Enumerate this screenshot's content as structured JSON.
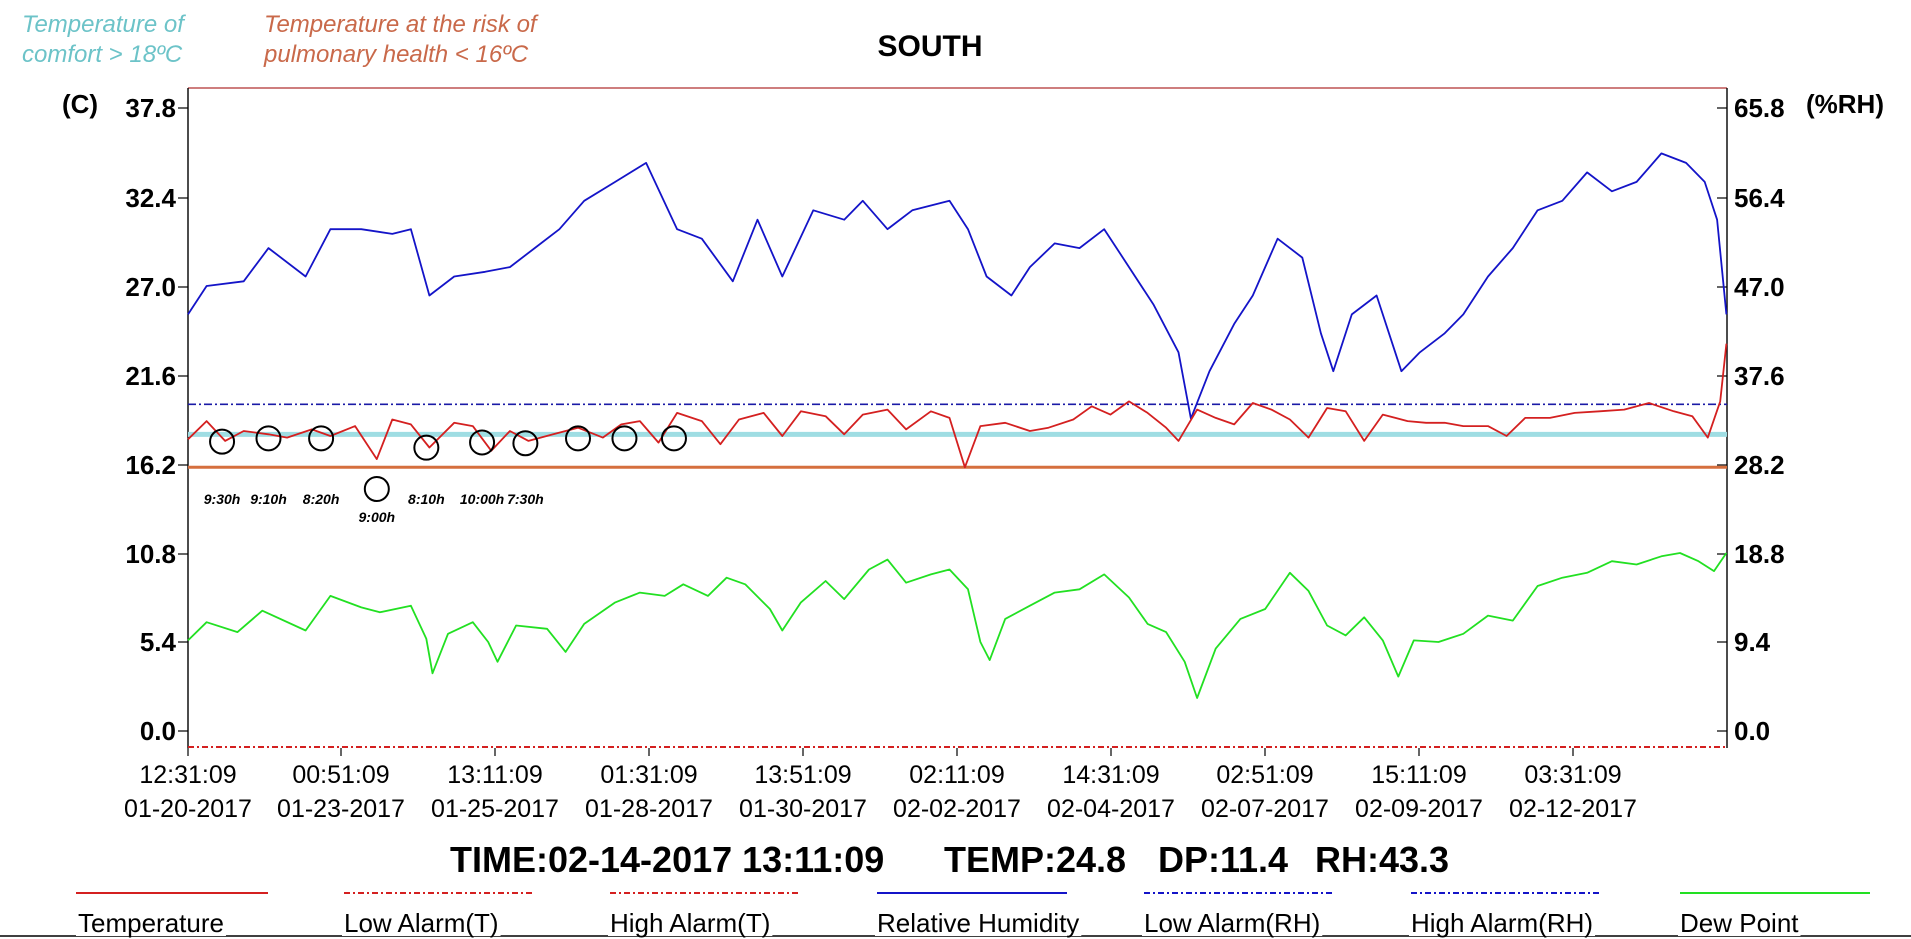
{
  "notes": {
    "comfort_line1": "Temperature of",
    "comfort_line2": "comfort > 18ºC",
    "comfort_color": "#6cc3c8",
    "risk_line1": "Temperature at the risk of",
    "risk_line2": "pulmonary health < 16ºC",
    "risk_color": "#c9694a"
  },
  "status": {
    "time": "TIME:02-14-2017 13:11:09",
    "temp": "TEMP:24.8",
    "dp": "DP:11.4",
    "rh": "RH:43.3"
  },
  "annotations": [
    {
      "label": "9:30h",
      "day": 0.55
    },
    {
      "label": "9:10h",
      "day": 1.3
    },
    {
      "label": "8:20h",
      "day": 2.15
    },
    {
      "label": "9:00h",
      "day": 3.05
    },
    {
      "label": "8:10h",
      "day": 3.85
    },
    {
      "label": "10:00h",
      "day": 4.75
    },
    {
      "label": "7:30h",
      "day": 5.45
    },
    {
      "label": "",
      "day": 6.3
    },
    {
      "label": "",
      "day": 7.05
    },
    {
      "label": "",
      "day": 7.85
    }
  ],
  "chart_data": {
    "type": "line",
    "title": "SOUTH",
    "left_axis_label": "(C)",
    "right_axis_label": "(%RH)",
    "left_ticks": [
      "37.8",
      "32.4",
      "27.0",
      "21.6",
      "16.2",
      "10.8",
      "5.4",
      "0.0"
    ],
    "right_ticks": [
      "65.8",
      "56.4",
      "47.0",
      "37.6",
      "28.2",
      "18.8",
      "9.4",
      "0.0"
    ],
    "left_ylim": [
      0.0,
      37.8
    ],
    "right_ylim": [
      0.0,
      65.8
    ],
    "x_tick_labels": [
      {
        "time": "12:31:09",
        "date": "01-20-2017"
      },
      {
        "time": "00:51:09",
        "date": "01-23-2017"
      },
      {
        "time": "13:11:09",
        "date": "01-25-2017"
      },
      {
        "time": "01:31:09",
        "date": "01-28-2017"
      },
      {
        "time": "13:51:09",
        "date": "01-30-2017"
      },
      {
        "time": "02:11:09",
        "date": "02-02-2017"
      },
      {
        "time": "14:31:09",
        "date": "02-04-2017"
      },
      {
        "time": "02:51:09",
        "date": "02-07-2017"
      },
      {
        "time": "15:11:09",
        "date": "02-09-2017"
      },
      {
        "time": "03:31:09",
        "date": "02-12-2017"
      }
    ],
    "x_range": [
      "01-20-2017 12:31:09",
      "02-14-2017 13:11:09"
    ],
    "reference_lines": [
      {
        "name": "Temperature of comfort",
        "value": 18,
        "axis": "left",
        "color": "#9fdde3"
      },
      {
        "name": "Temperature at the risk of pulmonary health",
        "value": 16,
        "axis": "left",
        "color": "#d56f3e"
      },
      {
        "name": "High Alarm(RH)",
        "value": 34.5,
        "axis": "right",
        "color": "#1a1aa6"
      },
      {
        "name": "Low Alarm(T)",
        "value": 0.0,
        "axis": "left",
        "color": "#cc2222"
      }
    ],
    "series": [
      {
        "name": "Relative Humidity",
        "axis": "right",
        "color": "#1414c8",
        "points": [
          [
            0,
            44
          ],
          [
            0.3,
            47
          ],
          [
            0.9,
            47.5
          ],
          [
            1.3,
            51
          ],
          [
            1.9,
            48
          ],
          [
            2.3,
            53
          ],
          [
            2.8,
            53
          ],
          [
            3.3,
            52.5
          ],
          [
            3.6,
            53
          ],
          [
            3.9,
            46
          ],
          [
            4.3,
            48
          ],
          [
            4.8,
            48.5
          ],
          [
            5.2,
            49
          ],
          [
            5.6,
            51
          ],
          [
            6.0,
            53
          ],
          [
            6.4,
            56
          ],
          [
            6.9,
            58
          ],
          [
            7.4,
            60
          ],
          [
            7.9,
            53
          ],
          [
            8.3,
            52
          ],
          [
            8.8,
            47.5
          ],
          [
            9.2,
            54
          ],
          [
            9.6,
            48
          ],
          [
            10.1,
            55
          ],
          [
            10.6,
            54
          ],
          [
            10.9,
            56
          ],
          [
            11.3,
            53
          ],
          [
            11.7,
            55
          ],
          [
            12.3,
            56
          ],
          [
            12.6,
            53
          ],
          [
            12.9,
            48
          ],
          [
            13.3,
            46
          ],
          [
            13.6,
            49
          ],
          [
            14.0,
            51.5
          ],
          [
            14.4,
            51
          ],
          [
            14.8,
            53
          ],
          [
            15.1,
            50
          ],
          [
            15.6,
            45
          ],
          [
            16.0,
            40
          ],
          [
            16.2,
            33
          ],
          [
            16.5,
            38
          ],
          [
            16.9,
            43
          ],
          [
            17.2,
            46
          ],
          [
            17.6,
            52
          ],
          [
            18.0,
            50
          ],
          [
            18.3,
            42
          ],
          [
            18.5,
            38
          ],
          [
            18.8,
            44
          ],
          [
            19.2,
            46
          ],
          [
            19.6,
            38
          ],
          [
            19.9,
            40
          ],
          [
            20.3,
            42
          ],
          [
            20.6,
            44
          ],
          [
            21.0,
            48
          ],
          [
            21.4,
            51
          ],
          [
            21.8,
            55
          ],
          [
            22.2,
            56
          ],
          [
            22.6,
            59
          ],
          [
            23.0,
            57
          ],
          [
            23.4,
            58
          ],
          [
            23.8,
            61
          ],
          [
            24.2,
            60
          ],
          [
            24.5,
            58
          ],
          [
            24.7,
            54
          ],
          [
            24.85,
            44
          ]
        ]
      },
      {
        "name": "Temperature",
        "axis": "left",
        "color": "#d42020",
        "points": [
          [
            0,
            17.7
          ],
          [
            0.3,
            18.8
          ],
          [
            0.6,
            17.6
          ],
          [
            0.9,
            18.2
          ],
          [
            1.3,
            18.0
          ],
          [
            1.6,
            17.8
          ],
          [
            2.0,
            18.3
          ],
          [
            2.3,
            17.9
          ],
          [
            2.7,
            18.5
          ],
          [
            3.05,
            16.5
          ],
          [
            3.3,
            18.9
          ],
          [
            3.6,
            18.6
          ],
          [
            3.9,
            17.2
          ],
          [
            4.3,
            18.7
          ],
          [
            4.6,
            18.5
          ],
          [
            4.9,
            17.0
          ],
          [
            5.2,
            18.2
          ],
          [
            5.5,
            17.6
          ],
          [
            5.9,
            18.0
          ],
          [
            6.3,
            18.4
          ],
          [
            6.7,
            17.8
          ],
          [
            7.0,
            18.6
          ],
          [
            7.3,
            18.8
          ],
          [
            7.6,
            17.5
          ],
          [
            7.9,
            19.3
          ],
          [
            8.3,
            18.8
          ],
          [
            8.6,
            17.4
          ],
          [
            8.9,
            18.9
          ],
          [
            9.3,
            19.3
          ],
          [
            9.6,
            17.9
          ],
          [
            9.9,
            19.4
          ],
          [
            10.3,
            19.1
          ],
          [
            10.6,
            18.0
          ],
          [
            10.9,
            19.2
          ],
          [
            11.3,
            19.5
          ],
          [
            11.6,
            18.3
          ],
          [
            12.0,
            19.4
          ],
          [
            12.3,
            19.0
          ],
          [
            12.55,
            16.0
          ],
          [
            12.8,
            18.5
          ],
          [
            13.2,
            18.7
          ],
          [
            13.6,
            18.2
          ],
          [
            13.9,
            18.4
          ],
          [
            14.3,
            18.9
          ],
          [
            14.6,
            19.7
          ],
          [
            14.9,
            19.2
          ],
          [
            15.2,
            20.0
          ],
          [
            15.5,
            19.3
          ],
          [
            15.8,
            18.4
          ],
          [
            16.0,
            17.6
          ],
          [
            16.3,
            19.5
          ],
          [
            16.6,
            19.0
          ],
          [
            16.9,
            18.6
          ],
          [
            17.2,
            19.9
          ],
          [
            17.5,
            19.5
          ],
          [
            17.8,
            18.9
          ],
          [
            18.1,
            17.8
          ],
          [
            18.4,
            19.6
          ],
          [
            18.7,
            19.4
          ],
          [
            19.0,
            17.6
          ],
          [
            19.3,
            19.2
          ],
          [
            19.7,
            18.8
          ],
          [
            20.0,
            18.7
          ],
          [
            20.3,
            18.7
          ],
          [
            20.6,
            18.5
          ],
          [
            21.0,
            18.5
          ],
          [
            21.3,
            17.9
          ],
          [
            21.6,
            19.0
          ],
          [
            22.0,
            19.0
          ],
          [
            22.4,
            19.3
          ],
          [
            22.8,
            19.4
          ],
          [
            23.2,
            19.5
          ],
          [
            23.6,
            19.9
          ],
          [
            24.0,
            19.4
          ],
          [
            24.3,
            19.1
          ],
          [
            24.55,
            17.8
          ],
          [
            24.75,
            20.0
          ],
          [
            24.85,
            23.5
          ]
        ]
      },
      {
        "name": "Dew Point",
        "axis": "left",
        "color": "#22e022",
        "points": [
          [
            0,
            5.5
          ],
          [
            0.3,
            6.6
          ],
          [
            0.8,
            6.0
          ],
          [
            1.2,
            7.3
          ],
          [
            1.9,
            6.1
          ],
          [
            2.3,
            8.2
          ],
          [
            2.8,
            7.5
          ],
          [
            3.1,
            7.2
          ],
          [
            3.6,
            7.6
          ],
          [
            3.85,
            5.6
          ],
          [
            3.95,
            3.5
          ],
          [
            4.2,
            5.9
          ],
          [
            4.6,
            6.6
          ],
          [
            4.85,
            5.4
          ],
          [
            5.0,
            4.2
          ],
          [
            5.3,
            6.4
          ],
          [
            5.8,
            6.2
          ],
          [
            6.1,
            4.8
          ],
          [
            6.4,
            6.5
          ],
          [
            6.9,
            7.8
          ],
          [
            7.3,
            8.4
          ],
          [
            7.7,
            8.2
          ],
          [
            8.0,
            8.9
          ],
          [
            8.4,
            8.2
          ],
          [
            8.7,
            9.3
          ],
          [
            9.0,
            8.9
          ],
          [
            9.4,
            7.4
          ],
          [
            9.6,
            6.1
          ],
          [
            9.9,
            7.8
          ],
          [
            10.3,
            9.1
          ],
          [
            10.6,
            8.0
          ],
          [
            11.0,
            9.8
          ],
          [
            11.3,
            10.4
          ],
          [
            11.6,
            9.0
          ],
          [
            12.0,
            9.5
          ],
          [
            12.3,
            9.8
          ],
          [
            12.6,
            8.6
          ],
          [
            12.8,
            5.4
          ],
          [
            12.95,
            4.3
          ],
          [
            13.2,
            6.8
          ],
          [
            13.6,
            7.6
          ],
          [
            14.0,
            8.4
          ],
          [
            14.4,
            8.6
          ],
          [
            14.8,
            9.5
          ],
          [
            15.2,
            8.1
          ],
          [
            15.5,
            6.5
          ],
          [
            15.8,
            6.0
          ],
          [
            16.1,
            4.2
          ],
          [
            16.3,
            2.0
          ],
          [
            16.6,
            5.0
          ],
          [
            17.0,
            6.8
          ],
          [
            17.4,
            7.4
          ],
          [
            17.8,
            9.6
          ],
          [
            18.1,
            8.5
          ],
          [
            18.4,
            6.4
          ],
          [
            18.7,
            5.8
          ],
          [
            19.0,
            6.9
          ],
          [
            19.3,
            5.5
          ],
          [
            19.55,
            3.3
          ],
          [
            19.8,
            5.5
          ],
          [
            20.2,
            5.4
          ],
          [
            20.6,
            5.9
          ],
          [
            21.0,
            7.0
          ],
          [
            21.4,
            6.7
          ],
          [
            21.8,
            8.8
          ],
          [
            22.2,
            9.3
          ],
          [
            22.6,
            9.6
          ],
          [
            23.0,
            10.3
          ],
          [
            23.4,
            10.1
          ],
          [
            23.8,
            10.6
          ],
          [
            24.1,
            10.8
          ],
          [
            24.4,
            10.3
          ],
          [
            24.65,
            9.7
          ],
          [
            24.85,
            10.8
          ]
        ]
      }
    ],
    "legend": [
      {
        "name": "Temperature",
        "color": "#d42020",
        "style": "solid"
      },
      {
        "name": "Low Alarm(T)",
        "color": "#d42020",
        "style": "dashdot"
      },
      {
        "name": "High Alarm(T)",
        "color": "#d42020",
        "style": "dashdot"
      },
      {
        "name": "Relative Humidity",
        "color": "#1414c8",
        "style": "solid"
      },
      {
        "name": "Low Alarm(RH)",
        "color": "#1414c8",
        "style": "dashdot"
      },
      {
        "name": "High Alarm(RH)",
        "color": "#1414c8",
        "style": "dashdot"
      },
      {
        "name": "Dew Point",
        "color": "#22e022",
        "style": "solid"
      }
    ],
    "legend_position": "bottom",
    "grid": false
  }
}
